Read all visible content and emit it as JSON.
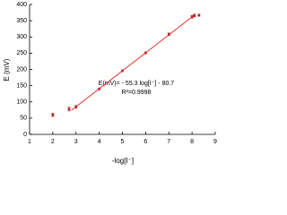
{
  "chart_data": {
    "type": "scatter",
    "y_label": "E (mV)",
    "x_label": "-log[I⁻]",
    "annotations": [
      "E(mV)= - 55.3 log[I⁻] - 80.7",
      "R²=0.9998"
    ],
    "xlim": [
      1,
      9
    ],
    "xticks": [
      1,
      2,
      3,
      4,
      5,
      6,
      7,
      8,
      9
    ],
    "ylim": [
      0,
      400
    ],
    "yticks": [
      0,
      50,
      100,
      150,
      200,
      250,
      300,
      350,
      400
    ],
    "series": [
      {
        "type": "scatter",
        "color": "#b22222",
        "x": [
          2,
          2.7,
          3,
          4,
          5,
          6,
          7,
          8,
          8.1,
          8.3
        ],
        "values": [
          60,
          78,
          85,
          140,
          196,
          251,
          308,
          362,
          366,
          367
        ],
        "errors": [
          5,
          6,
          4,
          3,
          3,
          3,
          4,
          4,
          4,
          3
        ]
      },
      {
        "type": "line",
        "color": "#e03030",
        "x": [
          2.8,
          8.1
        ],
        "values": [
          74.1,
          367.2
        ]
      }
    ]
  }
}
